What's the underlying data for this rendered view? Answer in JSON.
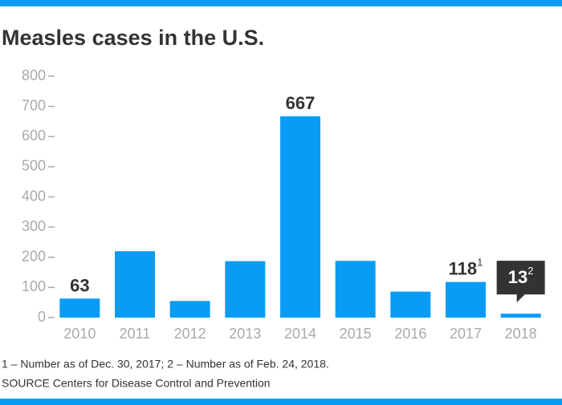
{
  "chart_data": {
    "type": "bar",
    "title": "Measles cases in the U.S.",
    "categories": [
      "2010",
      "2011",
      "2012",
      "2013",
      "2014",
      "2015",
      "2016",
      "2017",
      "2018"
    ],
    "values": [
      63,
      220,
      55,
      187,
      667,
      188,
      86,
      118,
      13
    ],
    "value_labels": [
      "63",
      null,
      null,
      null,
      "667",
      null,
      null,
      "118",
      "13"
    ],
    "value_label_notes": [
      null,
      null,
      null,
      null,
      null,
      null,
      null,
      "1",
      "2"
    ],
    "value_label_style": [
      "plain",
      null,
      null,
      null,
      "plain",
      null,
      null,
      "plain",
      "callout"
    ],
    "color": "#0a9cf5",
    "ylim": [
      0,
      800
    ],
    "yticks": [
      0,
      100,
      200,
      300,
      400,
      500,
      600,
      700,
      800
    ],
    "grid": false,
    "footnotes": [
      "1 – Number as of Dec. 30, 2017; 2 – Number as of Feb. 24, 2018.",
      "SOURCE Centers for Disease Control and Prevention"
    ]
  }
}
